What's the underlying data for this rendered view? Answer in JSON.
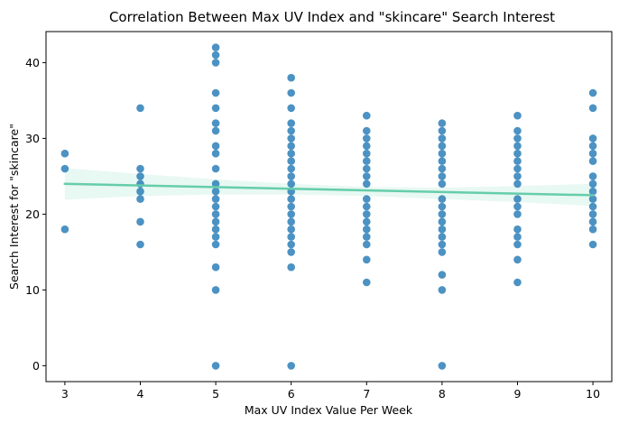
{
  "chart_data": {
    "type": "scatter",
    "title": "Correlation Between Max UV Index and \"skincare\" Search Interest",
    "xlabel": "Max UV Index Value Per Week",
    "ylabel": "Search Interest for \"skincare\"",
    "xlim": [
      2.75,
      10.25
    ],
    "ylim": [
      -2.1,
      44.1
    ],
    "xticks": [
      "3",
      "4",
      "5",
      "6",
      "7",
      "8",
      "9",
      "10"
    ],
    "yticks": [
      "0",
      "10",
      "20",
      "30",
      "40"
    ],
    "grid": false,
    "legend": "none",
    "point_color": "#1f77b4",
    "line_color": "#66cdaa",
    "points": [
      [
        3,
        28
      ],
      [
        3,
        26
      ],
      [
        3,
        18
      ],
      [
        4,
        34
      ],
      [
        4,
        26
      ],
      [
        4,
        25
      ],
      [
        4,
        24
      ],
      [
        4,
        23
      ],
      [
        4,
        22
      ],
      [
        4,
        19
      ],
      [
        4,
        16
      ],
      [
        5,
        42
      ],
      [
        5,
        41
      ],
      [
        5,
        40
      ],
      [
        5,
        36
      ],
      [
        5,
        34
      ],
      [
        5,
        32
      ],
      [
        5,
        31
      ],
      [
        5,
        29
      ],
      [
        5,
        28
      ],
      [
        5,
        26
      ],
      [
        5,
        24
      ],
      [
        5,
        23
      ],
      [
        5,
        22
      ],
      [
        5,
        21
      ],
      [
        5,
        20
      ],
      [
        5,
        19
      ],
      [
        5,
        18
      ],
      [
        5,
        17
      ],
      [
        5,
        16
      ],
      [
        5,
        13
      ],
      [
        5,
        10
      ],
      [
        5,
        0
      ],
      [
        6,
        38
      ],
      [
        6,
        36
      ],
      [
        6,
        34
      ],
      [
        6,
        32
      ],
      [
        6,
        31
      ],
      [
        6,
        30
      ],
      [
        6,
        29
      ],
      [
        6,
        28
      ],
      [
        6,
        27
      ],
      [
        6,
        26
      ],
      [
        6,
        25
      ],
      [
        6,
        24
      ],
      [
        6,
        23
      ],
      [
        6,
        22
      ],
      [
        6,
        21
      ],
      [
        6,
        20
      ],
      [
        6,
        19
      ],
      [
        6,
        18
      ],
      [
        6,
        17
      ],
      [
        6,
        16
      ],
      [
        6,
        15
      ],
      [
        6,
        13
      ],
      [
        6,
        0
      ],
      [
        7,
        33
      ],
      [
        7,
        31
      ],
      [
        7,
        30
      ],
      [
        7,
        29
      ],
      [
        7,
        28
      ],
      [
        7,
        27
      ],
      [
        7,
        26
      ],
      [
        7,
        25
      ],
      [
        7,
        24
      ],
      [
        7,
        22
      ],
      [
        7,
        21
      ],
      [
        7,
        20
      ],
      [
        7,
        19
      ],
      [
        7,
        18
      ],
      [
        7,
        17
      ],
      [
        7,
        16
      ],
      [
        7,
        14
      ],
      [
        7,
        11
      ],
      [
        8,
        32
      ],
      [
        8,
        31
      ],
      [
        8,
        30
      ],
      [
        8,
        29
      ],
      [
        8,
        28
      ],
      [
        8,
        27
      ],
      [
        8,
        26
      ],
      [
        8,
        25
      ],
      [
        8,
        24
      ],
      [
        8,
        22
      ],
      [
        8,
        21
      ],
      [
        8,
        20
      ],
      [
        8,
        19
      ],
      [
        8,
        18
      ],
      [
        8,
        17
      ],
      [
        8,
        16
      ],
      [
        8,
        15
      ],
      [
        8,
        12
      ],
      [
        8,
        10
      ],
      [
        8,
        0
      ],
      [
        9,
        33
      ],
      [
        9,
        31
      ],
      [
        9,
        30
      ],
      [
        9,
        29
      ],
      [
        9,
        28
      ],
      [
        9,
        27
      ],
      [
        9,
        26
      ],
      [
        9,
        25
      ],
      [
        9,
        24
      ],
      [
        9,
        22
      ],
      [
        9,
        21
      ],
      [
        9,
        20
      ],
      [
        9,
        18
      ],
      [
        9,
        17
      ],
      [
        9,
        16
      ],
      [
        9,
        14
      ],
      [
        9,
        11
      ],
      [
        10,
        36
      ],
      [
        10,
        34
      ],
      [
        10,
        30
      ],
      [
        10,
        29
      ],
      [
        10,
        28
      ],
      [
        10,
        27
      ],
      [
        10,
        25
      ],
      [
        10,
        24
      ],
      [
        10,
        23
      ],
      [
        10,
        22
      ],
      [
        10,
        21
      ],
      [
        10,
        20
      ],
      [
        10,
        19
      ],
      [
        10,
        18
      ],
      [
        10,
        16
      ]
    ],
    "regression": {
      "line": [
        [
          3,
          24.0
        ],
        [
          10,
          22.5
        ]
      ],
      "ci_upper": [
        [
          3,
          26.1
        ],
        [
          4,
          25.3
        ],
        [
          5,
          24.6
        ],
        [
          6,
          24.0
        ],
        [
          7,
          23.6
        ],
        [
          8,
          23.5
        ],
        [
          9,
          23.7
        ],
        [
          10,
          24.0
        ]
      ],
      "ci_lower": [
        [
          3,
          21.9
        ],
        [
          4,
          22.4
        ],
        [
          5,
          22.6
        ],
        [
          6,
          22.6
        ],
        [
          7,
          22.4
        ],
        [
          8,
          22.0
        ],
        [
          9,
          21.6
        ],
        [
          10,
          21.1
        ]
      ]
    }
  }
}
